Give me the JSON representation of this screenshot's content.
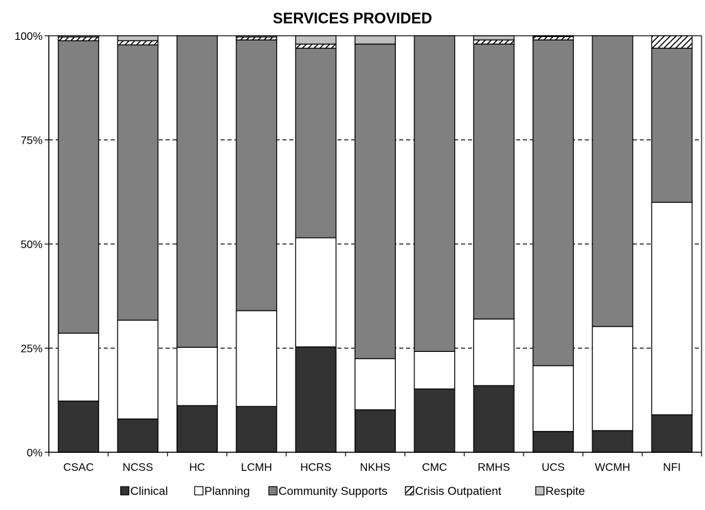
{
  "chart_data": {
    "type": "bar",
    "stacked": true,
    "normalized": true,
    "title": "SERVICES PROVIDED",
    "xlabel": "",
    "ylabel": "",
    "ylim": [
      0,
      100
    ],
    "yticks": [
      0,
      25,
      50,
      75,
      100
    ],
    "ytick_labels": [
      "0%",
      "25%",
      "50%",
      "75%",
      "100%"
    ],
    "grid": "horizontal dashed",
    "legend_position": "bottom",
    "categories": [
      "CSAC",
      "NCSS",
      "HC",
      "LCMH",
      "HCRS",
      "NKHS",
      "CMC",
      "RMHS",
      "UCS",
      "WCMH",
      "NFI"
    ],
    "series": [
      {
        "name": "Clinical",
        "color": "#333333",
        "pattern": "solid",
        "values": [
          12.3,
          8.0,
          11.2,
          11.0,
          25.3,
          10.2,
          15.2,
          16.0,
          5.0,
          5.2,
          9.0
        ]
      },
      {
        "name": "Planning",
        "color": "#ffffff",
        "pattern": "solid",
        "values": [
          16.3,
          23.7,
          14.0,
          23.0,
          26.2,
          12.3,
          9.0,
          16.0,
          15.8,
          25.0,
          51.0
        ]
      },
      {
        "name": "Community Supports",
        "color": "#808080",
        "pattern": "solid",
        "values": [
          70.2,
          66.1,
          74.8,
          65.0,
          45.5,
          75.5,
          75.8,
          66.0,
          78.2,
          69.8,
          37.0
        ]
      },
      {
        "name": "Crisis Outpatient",
        "color": "#ffffff",
        "pattern": "hatch",
        "values": [
          0.9,
          1.0,
          0.0,
          0.7,
          1.0,
          0.0,
          0.0,
          1.0,
          0.8,
          0.0,
          3.0
        ]
      },
      {
        "name": "Respite",
        "color": "#c0c0c0",
        "pattern": "solid",
        "values": [
          0.3,
          1.2,
          0.0,
          0.3,
          2.0,
          2.0,
          0.0,
          1.0,
          0.2,
          0.0,
          0.0
        ]
      }
    ]
  }
}
